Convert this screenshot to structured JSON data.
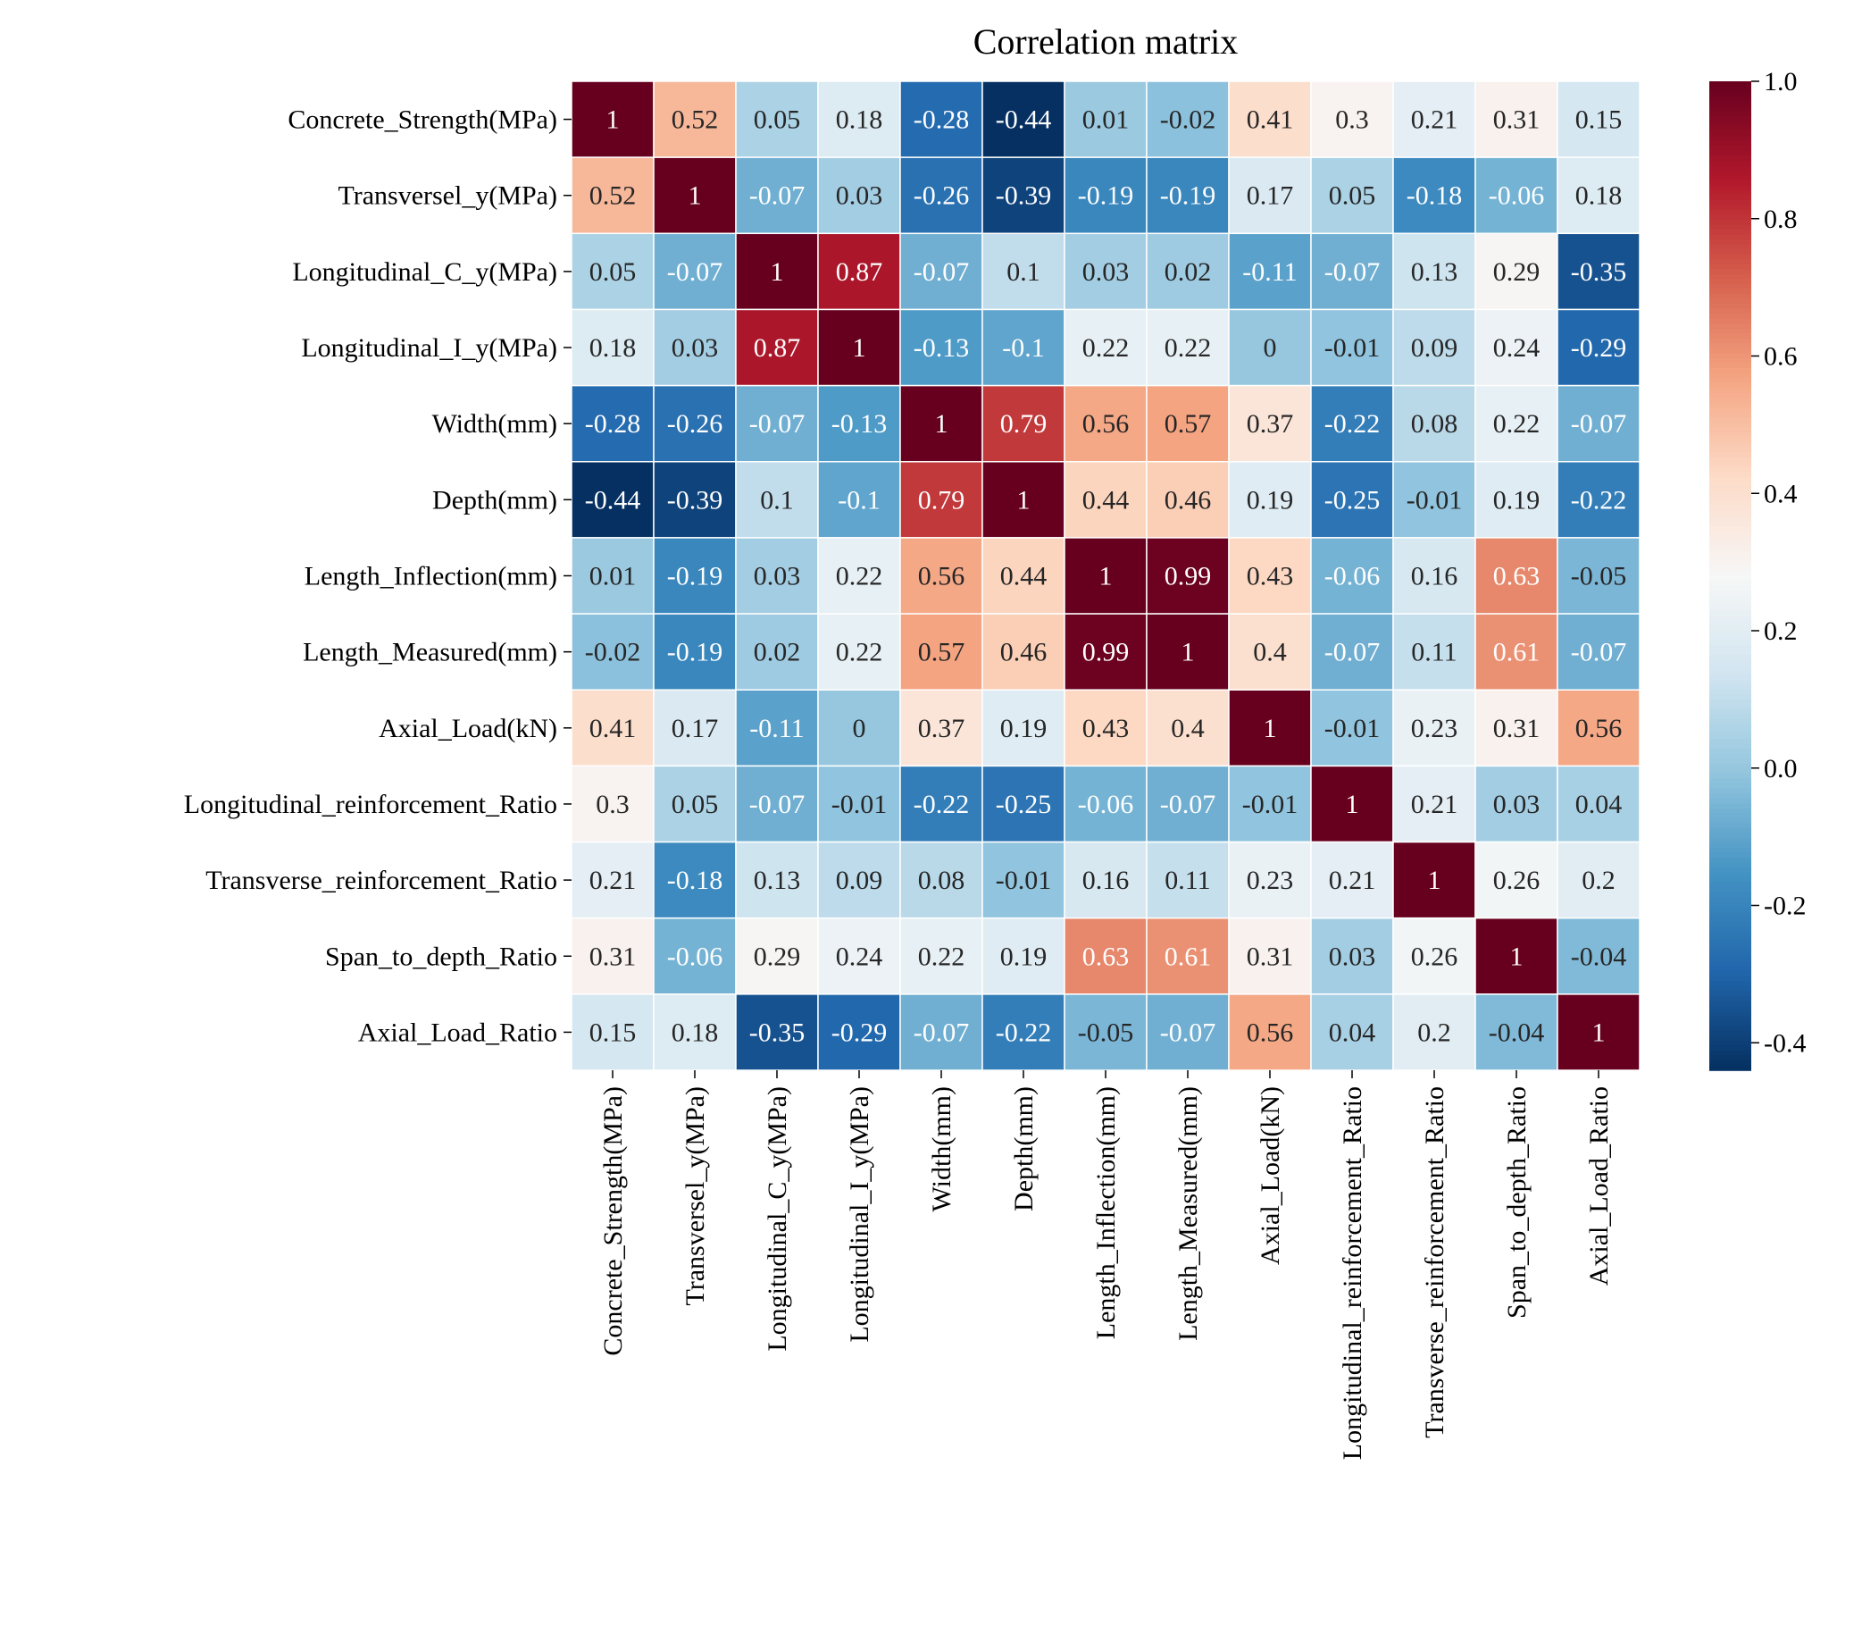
{
  "chart_data": {
    "type": "heatmap",
    "title": "Correlation matrix",
    "colormap": "RdBu_r",
    "vmin": -0.44,
    "vmax": 1.0,
    "colorbar_ticks": [
      "1.0",
      "0.8",
      "0.6",
      "0.4",
      "0.2",
      "0.0",
      "-0.2",
      "-0.4"
    ],
    "colorbar_tick_values": [
      1.0,
      0.8,
      0.6,
      0.4,
      0.2,
      0.0,
      -0.2,
      -0.4
    ],
    "labels": [
      "Concrete_Strength(MPa)",
      "Transversel_y(MPa)",
      "Longitudinal_C_y(MPa)",
      "Longitudinal_I_y(MPa)",
      "Width(mm)",
      "Depth(mm)",
      "Length_Inflection(mm)",
      "Length_Measured(mm)",
      "Axial_Load(kN)",
      "Longitudinal_reinforcement_Ratio",
      "Transverse_reinforcement_Ratio",
      "Span_to_depth_Ratio",
      "Axial_Load_Ratio"
    ],
    "values": [
      [
        1,
        0.52,
        0.05,
        0.18,
        -0.28,
        -0.44,
        0.01,
        -0.02,
        0.41,
        0.3,
        0.21,
        0.31,
        0.15
      ],
      [
        0.52,
        1,
        -0.07,
        0.03,
        -0.26,
        -0.39,
        -0.19,
        -0.19,
        0.17,
        0.05,
        -0.18,
        -0.06,
        0.18
      ],
      [
        0.05,
        -0.07,
        1,
        0.87,
        -0.07,
        0.1,
        0.03,
        0.02,
        -0.11,
        -0.07,
        0.13,
        0.29,
        -0.35
      ],
      [
        0.18,
        0.03,
        0.87,
        1,
        -0.13,
        -0.1,
        0.22,
        0.22,
        0,
        -0.01,
        0.09,
        0.24,
        -0.29
      ],
      [
        -0.28,
        -0.26,
        -0.07,
        -0.13,
        1,
        0.79,
        0.56,
        0.57,
        0.37,
        -0.22,
        0.08,
        0.22,
        -0.07
      ],
      [
        -0.44,
        -0.39,
        0.1,
        -0.1,
        0.79,
        1,
        0.44,
        0.46,
        0.19,
        -0.25,
        -0.01,
        0.19,
        -0.22
      ],
      [
        0.01,
        -0.19,
        0.03,
        0.22,
        0.56,
        0.44,
        1,
        0.99,
        0.43,
        -0.06,
        0.16,
        0.63,
        -0.05
      ],
      [
        -0.02,
        -0.19,
        0.02,
        0.22,
        0.57,
        0.46,
        0.99,
        1,
        0.4,
        -0.07,
        0.11,
        0.61,
        -0.07
      ],
      [
        0.41,
        0.17,
        -0.11,
        0,
        0.37,
        0.19,
        0.43,
        0.4,
        1,
        -0.01,
        0.23,
        0.31,
        0.56
      ],
      [
        0.3,
        0.05,
        -0.07,
        -0.01,
        -0.22,
        -0.25,
        -0.06,
        -0.07,
        -0.01,
        1,
        0.21,
        0.03,
        0.04
      ],
      [
        0.21,
        -0.18,
        0.13,
        0.09,
        0.08,
        -0.01,
        0.16,
        0.11,
        0.23,
        0.21,
        1,
        0.26,
        0.2
      ],
      [
        0.31,
        -0.06,
        0.29,
        0.24,
        0.22,
        0.19,
        0.63,
        0.61,
        0.31,
        0.03,
        0.26,
        1,
        -0.04
      ],
      [
        0.15,
        0.18,
        -0.35,
        -0.29,
        -0.07,
        -0.22,
        -0.05,
        -0.07,
        0.56,
        0.04,
        0.2,
        -0.04,
        1
      ]
    ]
  }
}
